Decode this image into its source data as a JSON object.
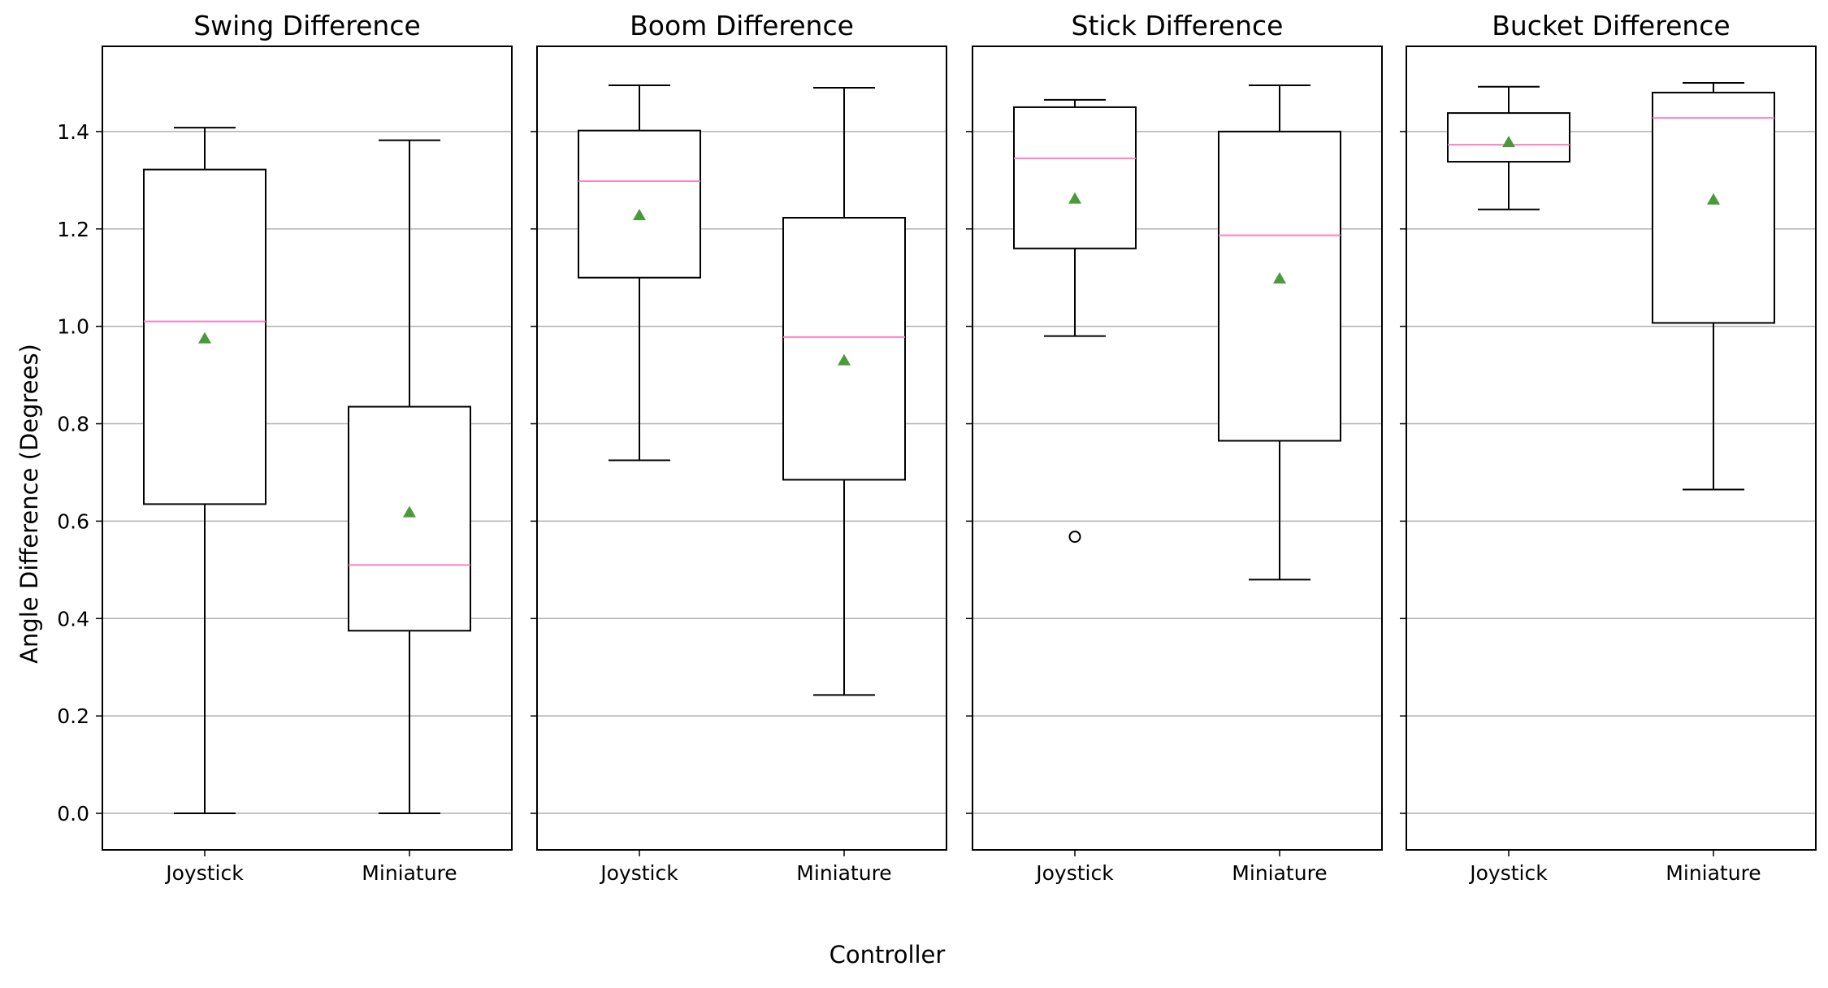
{
  "chart_data": {
    "type": "box",
    "ylabel": "Angle Difference (Degrees)",
    "xlabel": "Controller",
    "ylim": [
      -0.075,
      1.575
    ],
    "yticks": [
      0.0,
      0.2,
      0.4,
      0.6,
      0.8,
      1.0,
      1.2,
      1.4
    ],
    "ytick_labels": [
      "0.0",
      "0.2",
      "0.4",
      "0.6",
      "0.8",
      "1.0",
      "1.2",
      "1.4"
    ],
    "grid": "horizontal",
    "colors": {
      "median": "#ff7fbf",
      "mean": "#4a9a3a",
      "box": "#000000",
      "grid": "#b0b0b0"
    },
    "panels": [
      {
        "title": "Swing Difference",
        "categories": [
          "Joystick",
          "Miniature"
        ],
        "boxes": [
          {
            "whislo": 0.0,
            "q1": 0.635,
            "med": 1.01,
            "q3": 1.322,
            "whishi": 1.408,
            "mean": 0.975,
            "fliers": []
          },
          {
            "whislo": 0.0,
            "q1": 0.375,
            "med": 0.51,
            "q3": 0.835,
            "whishi": 1.382,
            "mean": 0.618,
            "fliers": []
          }
        ]
      },
      {
        "title": "Boom Difference",
        "categories": [
          "Joystick",
          "Miniature"
        ],
        "boxes": [
          {
            "whislo": 0.725,
            "q1": 1.1,
            "med": 1.298,
            "q3": 1.402,
            "whishi": 1.495,
            "mean": 1.228,
            "fliers": []
          },
          {
            "whislo": 0.243,
            "q1": 0.685,
            "med": 0.978,
            "q3": 1.223,
            "whishi": 1.49,
            "mean": 0.93,
            "fliers": []
          }
        ]
      },
      {
        "title": "Stick Difference",
        "categories": [
          "Joystick",
          "Miniature"
        ],
        "boxes": [
          {
            "whislo": 0.98,
            "q1": 1.16,
            "med": 1.345,
            "q3": 1.45,
            "whishi": 1.465,
            "mean": 1.262,
            "fliers": [
              0.568
            ]
          },
          {
            "whislo": 0.48,
            "q1": 0.765,
            "med": 1.187,
            "q3": 1.4,
            "whishi": 1.495,
            "mean": 1.098,
            "fliers": []
          }
        ]
      },
      {
        "title": "Bucket Difference",
        "categories": [
          "Joystick",
          "Miniature"
        ],
        "boxes": [
          {
            "whislo": 1.24,
            "q1": 1.338,
            "med": 1.373,
            "q3": 1.438,
            "whishi": 1.492,
            "mean": 1.378,
            "fliers": []
          },
          {
            "whislo": 0.665,
            "q1": 1.007,
            "med": 1.428,
            "q3": 1.48,
            "whishi": 1.5,
            "mean": 1.26,
            "fliers": []
          }
        ]
      }
    ]
  }
}
